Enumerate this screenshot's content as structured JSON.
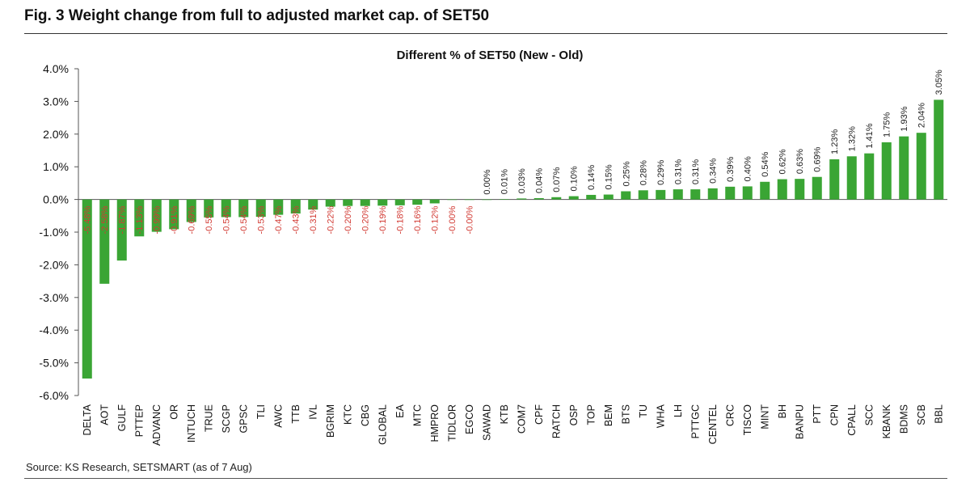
{
  "figure_title": "Fig. 3 Weight change from full to adjusted market cap. of SET50",
  "source": "Source: KS Research, SETSMART (as of 7 Aug)",
  "colors": {
    "bar": "#3aa534",
    "negative_label": "#d23a33",
    "positive_label": "#222222",
    "axis": "#555555"
  },
  "chart_data": {
    "type": "bar",
    "title": "Different % of SET50 (New - Old)",
    "xlabel": "",
    "ylabel": "",
    "ylim": [
      -6.0,
      4.0
    ],
    "yticks": [
      "4.0%",
      "3.0%",
      "2.0%",
      "1.0%",
      "0.0%",
      "-1.0%",
      "-2.0%",
      "-3.0%",
      "-4.0%",
      "-5.0%",
      "-6.0%"
    ],
    "ytick_values": [
      4,
      3,
      2,
      1,
      0,
      -1,
      -2,
      -3,
      -4,
      -5,
      -6
    ],
    "grid": false,
    "legend": "none",
    "categories": [
      "DELTA",
      "AOT",
      "GULF",
      "PTTEP",
      "ADVANC",
      "OR",
      "INTUCH",
      "TRUE",
      "SCGP",
      "GPSC",
      "TLI",
      "AWC",
      "TTB",
      "IVL",
      "BGRIM",
      "KTC",
      "CBG",
      "GLOBAL",
      "EA",
      "MTC",
      "HMPRO",
      "TIDLOR",
      "EGCO",
      "SAWAD",
      "KTB",
      "COM7",
      "CPF",
      "RATCH",
      "OSP",
      "TOP",
      "BEM",
      "BTS",
      "TU",
      "WHA",
      "LH",
      "PTTGC",
      "CENTEL",
      "CRC",
      "TISCO",
      "MINT",
      "BH",
      "BANPU",
      "PTT",
      "CPN",
      "CPALL",
      "SCC",
      "KBANK",
      "BDMS",
      "SCB",
      "BBL"
    ],
    "values": [
      -5.48,
      -2.58,
      -1.87,
      -1.13,
      -0.99,
      -0.91,
      -0.69,
      -0.55,
      -0.54,
      -0.54,
      -0.53,
      -0.47,
      -0.43,
      -0.31,
      -0.22,
      -0.2,
      -0.2,
      -0.19,
      -0.18,
      -0.16,
      -0.12,
      -0.0,
      -0.0,
      0.0,
      0.01,
      0.03,
      0.04,
      0.07,
      0.1,
      0.14,
      0.15,
      0.25,
      0.28,
      0.29,
      0.31,
      0.31,
      0.34,
      0.39,
      0.4,
      0.54,
      0.62,
      0.63,
      0.69,
      1.23,
      1.32,
      1.41,
      1.75,
      1.93,
      2.04,
      3.05
    ],
    "data_labels": [
      "-5.48%",
      "-2.58%",
      "-1.87%",
      "-1.13%",
      "-0.99%",
      "-0.91%",
      "-0.69%",
      "-0.55%",
      "-0.54%",
      "-0.54%",
      "-0.53%",
      "-0.47%",
      "-0.43%",
      "-0.31%",
      "-0.22%",
      "-0.20%",
      "-0.20%",
      "-0.19%",
      "-0.18%",
      "-0.16%",
      "-0.12%",
      "-0.00%",
      "-0.00%",
      "0.00%",
      "0.01%",
      "0.03%",
      "0.04%",
      "0.07%",
      "0.10%",
      "0.14%",
      "0.15%",
      "0.25%",
      "0.28%",
      "0.29%",
      "0.31%",
      "0.31%",
      "0.34%",
      "0.39%",
      "0.40%",
      "0.54%",
      "0.62%",
      "0.63%",
      "0.69%",
      "1.23%",
      "1.32%",
      "1.41%",
      "1.75%",
      "1.93%",
      "2.04%",
      "3.05%"
    ]
  }
}
